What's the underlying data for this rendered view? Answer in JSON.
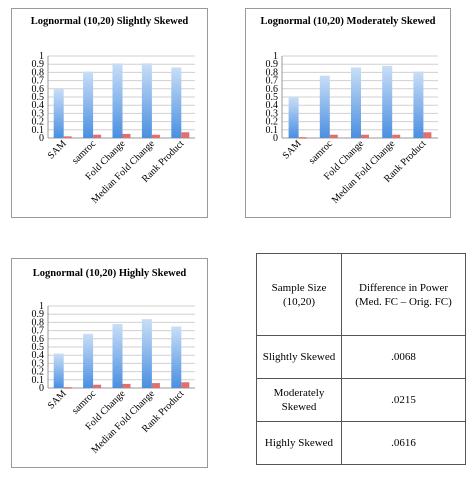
{
  "chart_data": [
    {
      "type": "bar",
      "title": "Lognormal (10,20) Slightly Skewed",
      "categories": [
        "SAM",
        "samroc",
        "Fold Change",
        "Median Fold Change",
        "Rank Product"
      ],
      "series": [
        {
          "values": [
            0.6,
            0.81,
            0.91,
            0.91,
            0.86
          ]
        },
        {
          "values": [
            0.02,
            0.04,
            0.05,
            0.04,
            0.07
          ]
        }
      ],
      "yticks": [
        "0",
        "0.1",
        "0.2",
        "0.3",
        "0.4",
        "0.5",
        "0.6",
        "0.7",
        "0.8",
        "0.9",
        "1"
      ],
      "ylim": [
        0,
        1
      ],
      "grid": true
    },
    {
      "type": "bar",
      "title": "Lognormal (10,20) Moderately Skewed",
      "categories": [
        "SAM",
        "samroc",
        "Fold Change",
        "Median Fold Change",
        "Rank Product"
      ],
      "series": [
        {
          "values": [
            0.5,
            0.76,
            0.86,
            0.88,
            0.81
          ]
        },
        {
          "values": [
            0.01,
            0.04,
            0.04,
            0.04,
            0.07
          ]
        }
      ],
      "yticks": [
        "0",
        "0.1",
        "0.2",
        "0.3",
        "0.4",
        "0.5",
        "0.6",
        "0.7",
        "0.8",
        "0.9",
        "1"
      ],
      "ylim": [
        0,
        1
      ],
      "grid": true
    },
    {
      "type": "bar",
      "title": "Lognormal (10,20) Highly Skewed",
      "categories": [
        "SAM",
        "samroc",
        "Fold Change",
        "Median Fold Change",
        "Rank Product"
      ],
      "series": [
        {
          "values": [
            0.42,
            0.66,
            0.78,
            0.84,
            0.75
          ]
        },
        {
          "values": [
            0.01,
            0.04,
            0.05,
            0.06,
            0.07
          ]
        }
      ],
      "yticks": [
        "0",
        "0.1",
        "0.2",
        "0.3",
        "0.4",
        "0.5",
        "0.6",
        "0.7",
        "0.8",
        "0.9",
        "1"
      ],
      "ylim": [
        0,
        1
      ],
      "grid": true
    }
  ],
  "colors": {
    "series1": "#4a8fe0",
    "series2": "#e07070"
  },
  "table": {
    "header": [
      "Sample Size (10,20)",
      "Difference in Power (Med. FC – Orig. FC)"
    ],
    "rows": [
      {
        "label": "Slightly Skewed",
        "value": ".0068"
      },
      {
        "label": "Moderately Skewed",
        "value": ".0215"
      },
      {
        "label": "Highly Skewed",
        "value": ".0616"
      }
    ]
  }
}
